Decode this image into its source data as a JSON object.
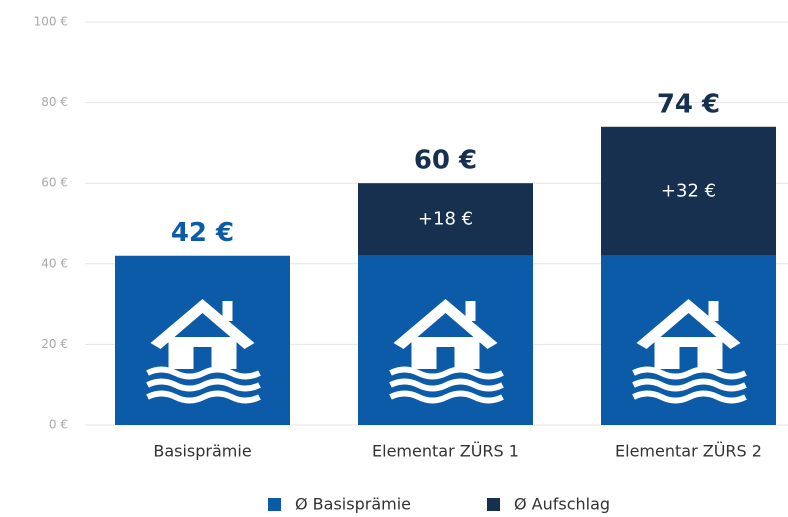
{
  "chart_data": {
    "type": "stacked_bar",
    "categories": [
      "Basisprämie",
      "Elementar ZÜRS 1",
      "Elementar ZÜRS 2"
    ],
    "series": [
      {
        "name": "Ø Basisprämie",
        "color": "#0b5ba8",
        "values": [
          42,
          42,
          42
        ]
      },
      {
        "name": "Ø Aufschlag",
        "color": "#17304f",
        "values": [
          null,
          18,
          32
        ],
        "value_labels": [
          null,
          "+18 €",
          "+32 €"
        ]
      }
    ],
    "total_labels": [
      "42 €",
      "60 €",
      "74 €"
    ],
    "ylim": [
      0,
      100
    ],
    "yticks": [
      {
        "value": 0,
        "label": "0 €"
      },
      {
        "value": 20,
        "label": "20 €"
      },
      {
        "value": 40,
        "label": "40 €"
      },
      {
        "value": 60,
        "label": "60 €"
      },
      {
        "value": 80,
        "label": "80 €"
      },
      {
        "value": 100,
        "label": "100 €"
      }
    ],
    "grid": true,
    "legend": "bottom"
  }
}
